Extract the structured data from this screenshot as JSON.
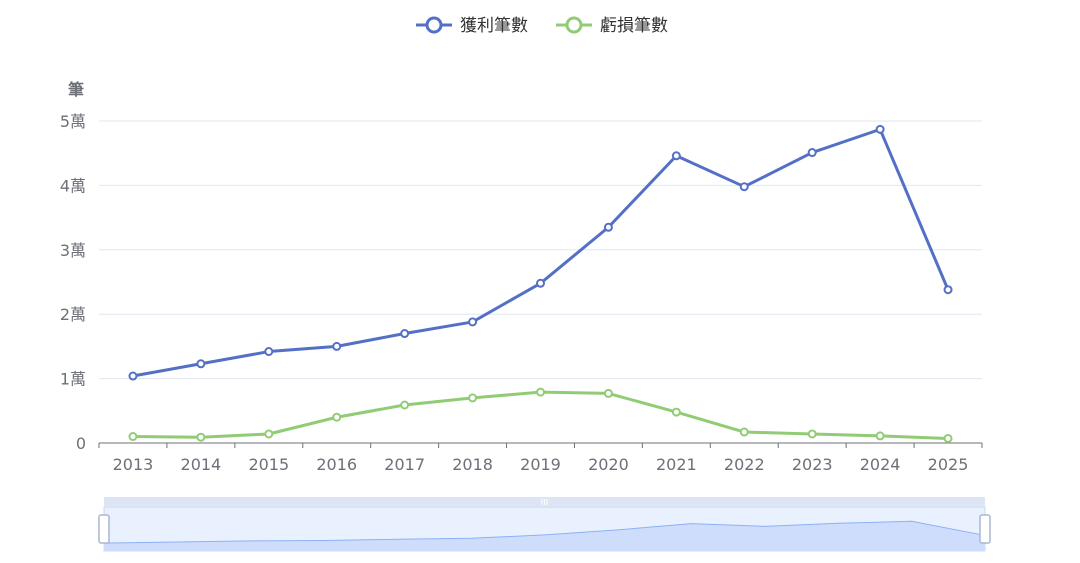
{
  "chart_data": {
    "type": "line",
    "title": "",
    "xlabel": "",
    "ylabel": "筆",
    "categories": [
      "2013",
      "2014",
      "2015",
      "2016",
      "2017",
      "2018",
      "2019",
      "2020",
      "2021",
      "2022",
      "2023",
      "2024",
      "2025"
    ],
    "ylim": [
      0,
      50000
    ],
    "y_ticks": [
      {
        "value": 0,
        "label": "0"
      },
      {
        "value": 10000,
        "label": "1萬"
      },
      {
        "value": 20000,
        "label": "2萬"
      },
      {
        "value": 30000,
        "label": "3萬"
      },
      {
        "value": 40000,
        "label": "4萬"
      },
      {
        "value": 50000,
        "label": "5萬"
      }
    ],
    "grid": true,
    "legend": "top-center",
    "series": [
      {
        "name": "獲利筆數",
        "color": "#5470c6",
        "values": [
          10400,
          12300,
          14200,
          15000,
          17000,
          18800,
          24800,
          33500,
          44600,
          39800,
          45100,
          48700,
          23800
        ]
      },
      {
        "name": "虧損筆數",
        "color": "#91cc75",
        "values": [
          1000,
          900,
          1400,
          4000,
          5900,
          7000,
          7900,
          7700,
          4800,
          1700,
          1400,
          1100,
          700
        ]
      }
    ],
    "data_zoom": {
      "start": 0,
      "end": 100,
      "fill": "#dfe7fb",
      "line": "#8fb0f7"
    }
  }
}
